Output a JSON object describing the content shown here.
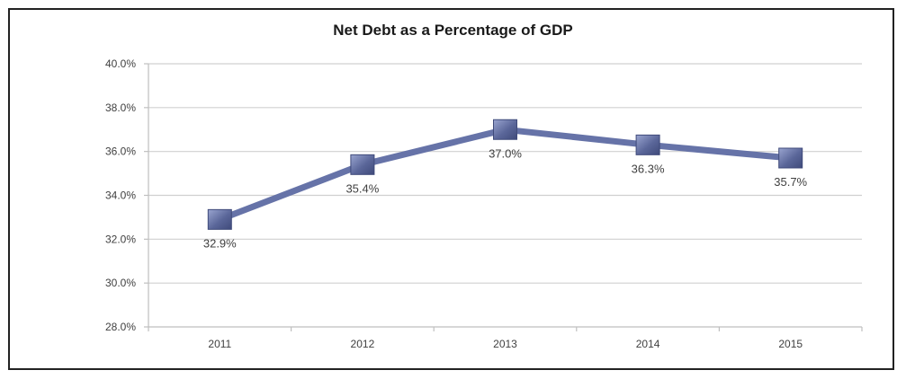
{
  "chart_data": {
    "type": "line",
    "title": "Net Debt as a Percentage of GDP",
    "xlabel": "",
    "ylabel": "",
    "categories": [
      "2011",
      "2012",
      "2013",
      "2014",
      "2015"
    ],
    "series": [
      {
        "values": [
          32.9,
          35.4,
          37.0,
          36.3,
          35.7
        ],
        "data_labels": [
          "32.9%",
          "35.4%",
          "37.0%",
          "36.3%",
          "35.7%"
        ],
        "color": "#6673a8",
        "marker": "square"
      }
    ],
    "ylim": [
      28.0,
      40.0
    ],
    "yticks": [
      28.0,
      30.0,
      32.0,
      34.0,
      36.0,
      38.0,
      40.0
    ],
    "ytick_labels": [
      "28.0%",
      "30.0%",
      "32.0%",
      "34.0%",
      "36.0%",
      "38.0%",
      "40.0%"
    ],
    "grid": true,
    "legend": "none",
    "colors": {
      "line": "#6673a8",
      "marker_fill": "#5a6699",
      "gridline": "#d0d0d0",
      "border": "#222222"
    }
  }
}
